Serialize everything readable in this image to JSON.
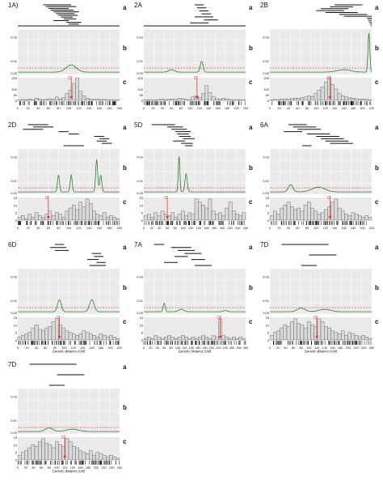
{
  "colors": {
    "grid_bg": "#eaeaea",
    "grid_line": "#ffffff",
    "lod_line": "#2e7d32",
    "threshold": "#e53935",
    "centromere": "#e53935",
    "bar_fill": "#d9d9d9",
    "bar_stroke": "#555555",
    "segment": "#111111"
  },
  "subpanel_letters": {
    "a": "a",
    "b": "b",
    "c": "c"
  },
  "centromere_label": "C",
  "x_axis_title": "Genetic distance (cM)",
  "b_yticks": [
    "0.03",
    "0.01",
    "0.00"
  ],
  "chart_data": [
    {
      "id": "1A",
      "label": "1A)",
      "type": "line",
      "xmax": 200,
      "xticks": [
        0,
        20,
        40,
        60,
        80,
        100,
        120,
        140,
        160,
        180,
        200
      ],
      "c_ymax": 200,
      "c_yticks": [
        0,
        50,
        100,
        200
      ],
      "b_ymax": 0.035,
      "threshold": 0.004,
      "centromere_x": 105,
      "show_xtitle": false,
      "segments": [
        [
          50,
          105
        ],
        [
          55,
          115
        ],
        [
          60,
          100
        ],
        [
          65,
          110
        ],
        [
          70,
          120
        ],
        [
          75,
          112
        ],
        [
          80,
          118
        ],
        [
          85,
          108
        ],
        [
          90,
          115
        ],
        [
          70,
          100
        ],
        [
          95,
          125
        ],
        [
          100,
          120
        ],
        [
          0,
          200
        ]
      ],
      "peaks": [
        [
          105,
          0.006,
          10
        ]
      ],
      "bars": [
        5,
        8,
        4,
        12,
        6,
        20,
        10,
        6,
        9,
        14,
        8,
        30,
        12,
        25,
        60,
        90,
        150,
        210,
        80,
        40,
        20,
        10,
        8,
        12,
        6,
        9,
        5,
        4,
        6,
        3
      ]
    },
    {
      "id": "2A",
      "label": "2A",
      "type": "line",
      "xmax": 220,
      "xticks": [
        0,
        20,
        40,
        60,
        80,
        100,
        120,
        140,
        160,
        180,
        200,
        220
      ],
      "c_ymax": 200,
      "c_yticks": [
        0,
        50,
        100,
        200
      ],
      "b_ymax": 0.035,
      "threshold": 0.004,
      "centromere_x": 115,
      "show_xtitle": false,
      "segments": [
        [
          110,
          130
        ],
        [
          115,
          135
        ],
        [
          120,
          140
        ],
        [
          125,
          145
        ],
        [
          110,
          150
        ],
        [
          130,
          160
        ],
        [
          100,
          140
        ],
        [
          0,
          220
        ]
      ],
      "peaks": [
        [
          125,
          0.009,
          3
        ],
        [
          60,
          0.002,
          6
        ]
      ],
      "bars": [
        4,
        6,
        3,
        5,
        8,
        10,
        6,
        12,
        9,
        7,
        20,
        15,
        8,
        6,
        30,
        40,
        25,
        60,
        130,
        70,
        30,
        15,
        10,
        20,
        12,
        8,
        6,
        5,
        4,
        6
      ]
    },
    {
      "id": "2B",
      "label": "2B",
      "type": "line",
      "xmax": 220,
      "xticks": [
        0,
        20,
        40,
        60,
        80,
        100,
        120,
        140,
        160,
        180,
        200,
        220
      ],
      "c_ymax": 200,
      "c_yticks": [
        0,
        50,
        100,
        200
      ],
      "b_ymax": 0.035,
      "threshold": 0.004,
      "centromere_x": 130,
      "show_xtitle": false,
      "segments": [
        [
          140,
          200
        ],
        [
          130,
          180
        ],
        [
          110,
          170
        ],
        [
          100,
          160
        ],
        [
          120,
          190
        ],
        [
          150,
          210
        ],
        [
          160,
          220
        ],
        [
          210,
          220
        ],
        [
          212,
          220
        ],
        [
          214,
          220
        ],
        [
          216,
          220
        ],
        [
          218,
          220
        ]
      ],
      "peaks": [
        [
          214,
          0.033,
          2
        ],
        [
          160,
          0.002,
          15
        ]
      ],
      "bars": [
        5,
        8,
        6,
        10,
        12,
        9,
        15,
        20,
        18,
        25,
        30,
        40,
        35,
        60,
        90,
        120,
        160,
        200,
        140,
        100,
        60,
        40,
        30,
        25,
        20,
        15,
        12,
        10,
        8,
        6
      ]
    },
    {
      "id": "2D",
      "label": "2D",
      "type": "line",
      "xmax": 200,
      "xticks": [
        0,
        20,
        40,
        60,
        80,
        100,
        120,
        140,
        160,
        180,
        200
      ],
      "c_ymax": 15,
      "c_yticks": [
        0,
        5,
        10,
        15
      ],
      "b_ymax": 0.035,
      "threshold": 0.004,
      "centromere_x": 60,
      "show_xtitle": false,
      "segments": [
        [
          20,
          60
        ],
        [
          30,
          70
        ],
        [
          10,
          50
        ],
        [
          80,
          100
        ],
        [
          100,
          120
        ],
        [
          150,
          170
        ],
        [
          160,
          180
        ],
        [
          155,
          175
        ],
        [
          165,
          185
        ],
        [
          90,
          130
        ]
      ],
      "peaks": [
        [
          80,
          0.014,
          2
        ],
        [
          105,
          0.014,
          2
        ],
        [
          155,
          0.027,
          2
        ],
        [
          163,
          0.014,
          2
        ]
      ],
      "bars": [
        2,
        3,
        1,
        4,
        2,
        5,
        3,
        2,
        4,
        6,
        3,
        5,
        4,
        2,
        6,
        8,
        10,
        7,
        12,
        9,
        14,
        11,
        6,
        4,
        3,
        5,
        2,
        3,
        2,
        1
      ]
    },
    {
      "id": "5D",
      "label": "5D",
      "type": "line",
      "xmax": 260,
      "xticks": [
        0,
        20,
        40,
        60,
        80,
        100,
        120,
        140,
        160,
        180,
        200,
        220,
        240,
        260
      ],
      "c_ymax": 15,
      "c_yticks": [
        0,
        5,
        10,
        15
      ],
      "b_ymax": 0.035,
      "threshold": 0.004,
      "centromere_x": 60,
      "show_xtitle": false,
      "segments": [
        [
          20,
          80
        ],
        [
          60,
          100
        ],
        [
          70,
          110
        ],
        [
          80,
          120
        ],
        [
          85,
          115
        ],
        [
          90,
          120
        ],
        [
          100,
          130
        ],
        [
          75,
          105
        ],
        [
          95,
          125
        ],
        [
          105,
          125
        ]
      ],
      "peaks": [
        [
          90,
          0.03,
          2
        ],
        [
          108,
          0.015,
          3
        ]
      ],
      "bars": [
        3,
        4,
        2,
        5,
        3,
        6,
        4,
        3,
        5,
        2,
        4,
        6,
        3,
        5,
        4,
        14,
        12,
        10,
        8,
        14,
        6,
        4,
        5,
        3,
        8,
        12,
        6,
        4,
        3,
        5
      ]
    },
    {
      "id": "6A",
      "label": "6A",
      "type": "line",
      "xmax": 220,
      "xticks": [
        0,
        20,
        40,
        60,
        80,
        100,
        120,
        140,
        160,
        180,
        200,
        220
      ],
      "c_ymax": 15,
      "c_yticks": [
        0,
        5,
        10,
        15
      ],
      "b_ymax": 0.035,
      "threshold": 0.004,
      "centromere_x": 130,
      "show_xtitle": false,
      "segments": [
        [
          40,
          80
        ],
        [
          50,
          100
        ],
        [
          60,
          110
        ],
        [
          30,
          70
        ],
        [
          80,
          130
        ],
        [
          100,
          150
        ],
        [
          110,
          160
        ],
        [
          120,
          170
        ],
        [
          130,
          180
        ],
        [
          70,
          90
        ]
      ],
      "peaks": [
        [
          45,
          0.006,
          5
        ],
        [
          105,
          0.004,
          14
        ]
      ],
      "bars": [
        3,
        6,
        4,
        8,
        10,
        12,
        9,
        7,
        8,
        6,
        10,
        12,
        8,
        6,
        4,
        5,
        7,
        9,
        12,
        14,
        8,
        6,
        4,
        3,
        5,
        4,
        3,
        2,
        3,
        2
      ]
    },
    {
      "id": "6D",
      "label": "6D",
      "type": "line",
      "xmax": 220,
      "xticks": [
        0,
        20,
        40,
        60,
        80,
        100,
        120,
        140,
        160,
        180,
        200,
        220
      ],
      "c_ymax": 15,
      "c_yticks": [
        0,
        5,
        10,
        15
      ],
      "b_ymax": 0.035,
      "threshold": 0.004,
      "centromere_x": 90,
      "show_xtitle": true,
      "segments": [
        [
          80,
          100
        ],
        [
          70,
          105
        ],
        [
          80,
          110
        ],
        [
          160,
          180
        ],
        [
          165,
          185
        ],
        [
          150,
          175
        ],
        [
          170,
          190
        ],
        [
          155,
          190
        ]
      ],
      "peaks": [
        [
          90,
          0.01,
          4
        ],
        [
          160,
          0.01,
          5
        ]
      ],
      "bars": [
        2,
        3,
        4,
        5,
        8,
        10,
        7,
        6,
        8,
        9,
        12,
        14,
        10,
        8,
        6,
        5,
        4,
        3,
        4,
        6,
        5,
        4,
        3,
        2,
        4,
        3,
        2,
        3,
        2,
        1
      ]
    },
    {
      "id": "7A",
      "label": "7A",
      "type": "line",
      "xmax": 300,
      "xticks": [
        0,
        20,
        40,
        60,
        80,
        100,
        120,
        140,
        160,
        180,
        200,
        220,
        240,
        260,
        280,
        300
      ],
      "c_ymax": 15,
      "c_yticks": [
        0,
        5,
        10,
        15
      ],
      "b_ymax": 0.035,
      "threshold": 0.004,
      "centromere_x": 225,
      "show_xtitle": true,
      "segments": [
        [
          30,
          60
        ],
        [
          80,
          140
        ],
        [
          100,
          150
        ],
        [
          120,
          170
        ],
        [
          90,
          130
        ],
        [
          140,
          180
        ],
        [
          60,
          100
        ],
        [
          150,
          200
        ]
      ],
      "peaks": [
        [
          60,
          0.007,
          3
        ],
        [
          110,
          0.002,
          8
        ],
        [
          240,
          0.001,
          6
        ]
      ],
      "bars": [
        1,
        2,
        1,
        3,
        2,
        1,
        2,
        3,
        2,
        1,
        2,
        3,
        2,
        1,
        2,
        1,
        2,
        3,
        2,
        1,
        3,
        2,
        14,
        3,
        2,
        1,
        2,
        1,
        2,
        1
      ]
    },
    {
      "id": "7D",
      "label": "7D",
      "type": "line",
      "xmax": 260,
      "xticks": [
        0,
        20,
        40,
        60,
        80,
        100,
        120,
        140,
        160,
        180,
        200,
        220,
        240,
        260
      ],
      "c_ymax": 15,
      "c_yticks": [
        0,
        5,
        10,
        15
      ],
      "b_ymax": 0.035,
      "threshold": 0.004,
      "centromere_x": 120,
      "show_xtitle": true,
      "segments": [
        [
          30,
          150
        ],
        [
          100,
          170
        ],
        [
          80,
          120
        ]
      ],
      "peaks": [
        [
          80,
          0.003,
          10
        ],
        [
          140,
          0.002,
          15
        ]
      ],
      "bars": [
        3,
        5,
        6,
        8,
        10,
        9,
        12,
        14,
        11,
        10,
        8,
        12,
        10,
        9,
        14,
        12,
        9,
        8,
        6,
        5,
        4,
        6,
        3,
        5,
        4,
        3,
        2,
        3,
        2,
        1
      ]
    },
    {
      "id": "7D_b",
      "label": "7D",
      "type": "line",
      "xmax": 260,
      "xticks": [
        0,
        20,
        40,
        60,
        80,
        100,
        120,
        140,
        160,
        180,
        200,
        220,
        240,
        260
      ],
      "c_ymax": 15,
      "c_yticks": [
        0,
        5,
        10,
        15
      ],
      "b_ymax": 0.035,
      "threshold": 0.004,
      "centromere_x": 120,
      "show_xtitle": true,
      "segments": [
        [
          30,
          150
        ],
        [
          100,
          170
        ],
        [
          80,
          120
        ]
      ],
      "peaks": [
        [
          80,
          0.003,
          10
        ],
        [
          140,
          0.002,
          15
        ]
      ],
      "bars": [
        3,
        5,
        6,
        8,
        10,
        9,
        12,
        14,
        11,
        10,
        8,
        12,
        10,
        9,
        14,
        12,
        9,
        8,
        6,
        5,
        4,
        6,
        3,
        5,
        4,
        3,
        2,
        3,
        2,
        1
      ]
    }
  ]
}
